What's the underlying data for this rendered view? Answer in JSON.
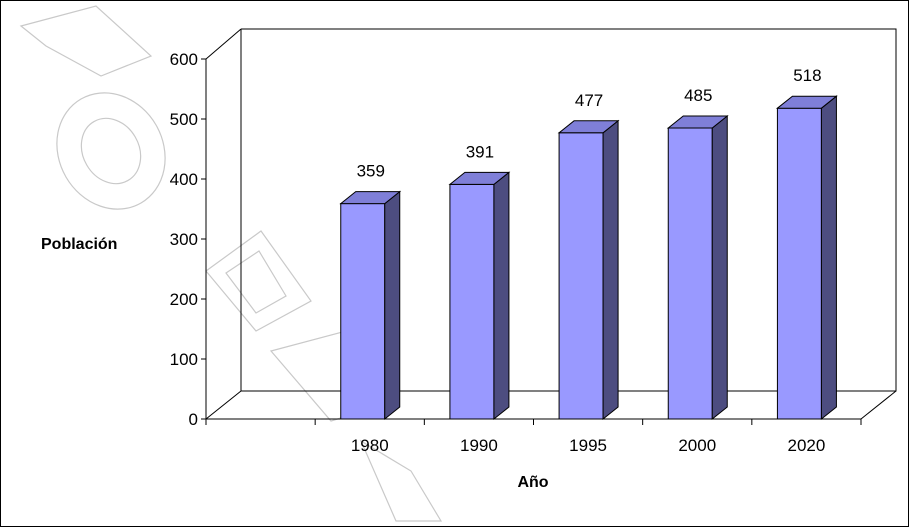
{
  "chart_data": {
    "type": "bar",
    "categories": [
      "1980",
      "1990",
      "1995",
      "2000",
      "2020"
    ],
    "values": [
      359,
      391,
      477,
      485,
      518
    ],
    "data_labels": [
      "359",
      "391",
      "477",
      "485",
      "518"
    ],
    "title": "",
    "xlabel": "Año",
    "ylabel": "Población",
    "ylim": [
      0,
      600
    ],
    "yticks": [
      "0",
      "100",
      "200",
      "300",
      "400",
      "500",
      "600"
    ],
    "grid": false,
    "legend": "none",
    "style": "3d-column",
    "colors": {
      "bar_front": "#9999ff",
      "bar_top": "#7f7fd8",
      "bar_side": "#4d4d80",
      "outline": "#000000"
    }
  }
}
